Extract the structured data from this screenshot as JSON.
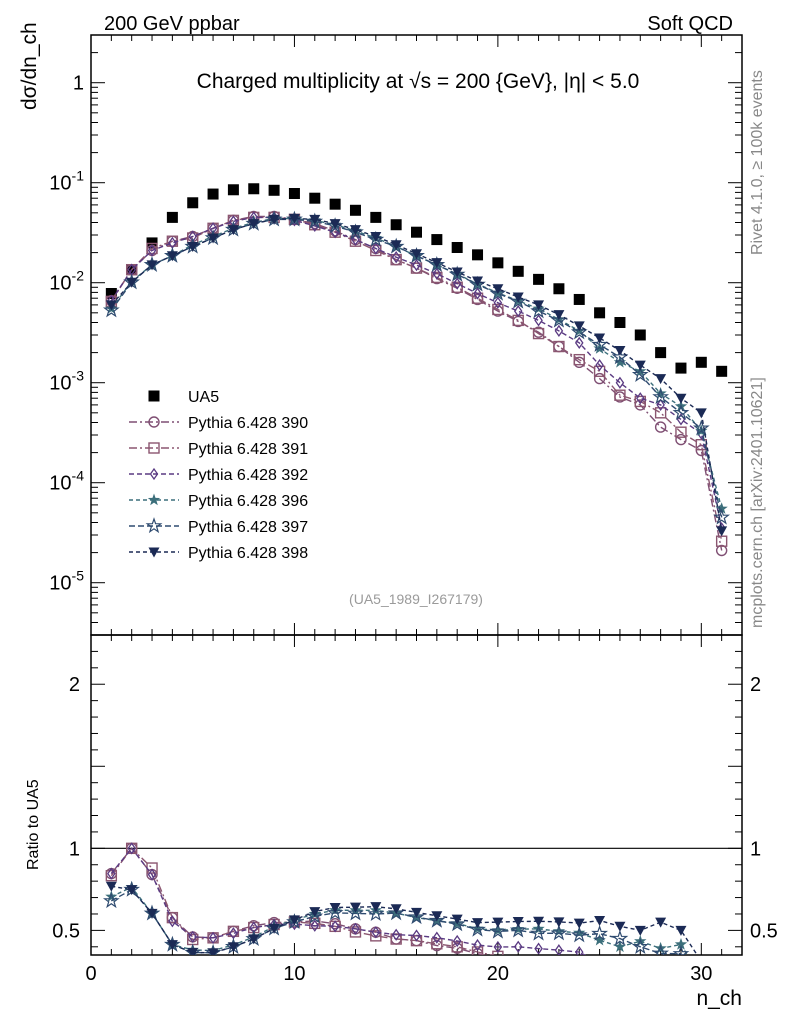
{
  "header": {
    "left": "200 GeV ppbar",
    "right": "Soft QCD"
  },
  "side_text": {
    "top": "Rivet 4.1.0, ≥ 100k events",
    "bottom": "mcplots.cern.ch [arXiv:2401.10621]"
  },
  "chart_data": {
    "type": "scatter",
    "title": "Charged multiplicity at √s = 200 {GeV}, |η| < 5.0",
    "xlabel": "n_ch",
    "ylabel": "dσ/dn_ch",
    "ratio_ylabel": "Ratio to UA5",
    "watermark": "(UA5_1989_I267179)",
    "xlim": [
      0,
      32
    ],
    "ylim": [
      3e-06,
      3
    ],
    "yscale": "log",
    "ratio_ylim": [
      0.35,
      2.3
    ],
    "x_ticks": [
      "0",
      "10",
      "20",
      "30"
    ],
    "y_tick_labels": [
      "1",
      "10^-1",
      "10^-2",
      "10^-3",
      "10^-4",
      "10^-5"
    ],
    "ratio_tick_labels": [
      "0.5",
      "1",
      "2"
    ],
    "x": [
      1,
      2,
      3,
      4,
      5,
      6,
      7,
      8,
      9,
      10,
      11,
      12,
      13,
      14,
      15,
      16,
      17,
      18,
      19,
      20,
      21,
      22,
      23,
      24,
      25,
      26,
      27,
      28,
      29,
      30,
      31
    ],
    "series": [
      {
        "name": "UA5",
        "color": "#000000",
        "marker": "filled-square",
        "dash": "",
        "values": [
          0.0078,
          0.0135,
          0.025,
          0.045,
          0.063,
          0.077,
          0.085,
          0.087,
          0.084,
          0.078,
          0.07,
          0.061,
          0.053,
          0.045,
          0.038,
          0.032,
          0.027,
          0.0225,
          0.019,
          0.0158,
          0.013,
          0.0108,
          0.0087,
          0.0068,
          0.005,
          0.004,
          0.003,
          0.002,
          0.0014,
          0.0016,
          0.0013
        ]
      },
      {
        "name": "Pythia 6.428 390",
        "color": "#7f4f73",
        "marker": "open-circle",
        "dash": "8 3 2 3",
        "values": [
          0.0066,
          0.0135,
          0.021,
          0.026,
          0.029,
          0.035,
          0.042,
          0.046,
          0.046,
          0.043,
          0.039,
          0.033,
          0.027,
          0.022,
          0.017,
          0.014,
          0.011,
          0.0088,
          0.0068,
          0.0052,
          0.0041,
          0.0032,
          0.0023,
          0.0016,
          0.0011,
          0.00072,
          0.0006,
          0.00036,
          0.00027,
          0.00021,
          2.1e-05
        ]
      },
      {
        "name": "Pythia 6.428 391",
        "color": "#8b5670",
        "marker": "open-square",
        "dash": "8 3 2 3",
        "values": [
          0.0065,
          0.0135,
          0.022,
          0.026,
          0.028,
          0.035,
          0.042,
          0.045,
          0.045,
          0.043,
          0.038,
          0.032,
          0.026,
          0.021,
          0.017,
          0.014,
          0.0113,
          0.009,
          0.007,
          0.0054,
          0.0042,
          0.0031,
          0.0023,
          0.0017,
          0.0013,
          0.00075,
          0.00065,
          0.0005,
          0.00032,
          0.00024,
          2.6e-05
        ]
      },
      {
        "name": "Pythia 6.428 392",
        "color": "#5a3a82",
        "marker": "open-diamond",
        "dash": "5 3",
        "values": [
          0.0066,
          0.0135,
          0.021,
          0.025,
          0.029,
          0.035,
          0.041,
          0.045,
          0.045,
          0.042,
          0.037,
          0.032,
          0.027,
          0.022,
          0.018,
          0.015,
          0.0123,
          0.0098,
          0.0078,
          0.0063,
          0.0052,
          0.0042,
          0.0033,
          0.0025,
          0.0015,
          0.001,
          0.0007,
          0.0006,
          0.00043,
          0.00031,
          3.5e-05
        ]
      },
      {
        "name": "Pythia 6.428 396",
        "color": "#3c6f7b",
        "marker": "filled-star",
        "dash": "4 3",
        "values": [
          0.0055,
          0.0103,
          0.0151,
          0.0186,
          0.024,
          0.029,
          0.035,
          0.04,
          0.044,
          0.044,
          0.042,
          0.038,
          0.033,
          0.028,
          0.023,
          0.0185,
          0.0151,
          0.0122,
          0.0097,
          0.0079,
          0.0066,
          0.0055,
          0.0043,
          0.0033,
          0.0022,
          0.0016,
          0.0013,
          0.00078,
          0.00058,
          0.00033,
          5.5e-05
        ]
      },
      {
        "name": "Pythia 6.428 397",
        "color": "#2f4b70",
        "marker": "open-star",
        "dash": "6 3",
        "values": [
          0.0053,
          0.0101,
          0.0151,
          0.0186,
          0.023,
          0.028,
          0.034,
          0.039,
          0.043,
          0.043,
          0.041,
          0.037,
          0.032,
          0.027,
          0.023,
          0.0186,
          0.0151,
          0.0121,
          0.0096,
          0.0078,
          0.0065,
          0.0052,
          0.0042,
          0.0032,
          0.0024,
          0.0018,
          0.0012,
          0.00072,
          0.0005,
          0.00035,
          4.5e-05
        ]
      },
      {
        "name": "Pythia 6.428 398",
        "color": "#1b2a55",
        "marker": "filled-triangle-down",
        "dash": "4 3",
        "values": [
          0.006,
          0.0101,
          0.0151,
          0.0186,
          0.023,
          0.028,
          0.034,
          0.039,
          0.043,
          0.044,
          0.043,
          0.039,
          0.034,
          0.029,
          0.024,
          0.0195,
          0.0159,
          0.0128,
          0.0104,
          0.0087,
          0.0072,
          0.006,
          0.0048,
          0.0037,
          0.0028,
          0.0021,
          0.0015,
          0.0011,
          0.0007,
          0.0005,
          3.3e-05
        ]
      }
    ]
  }
}
